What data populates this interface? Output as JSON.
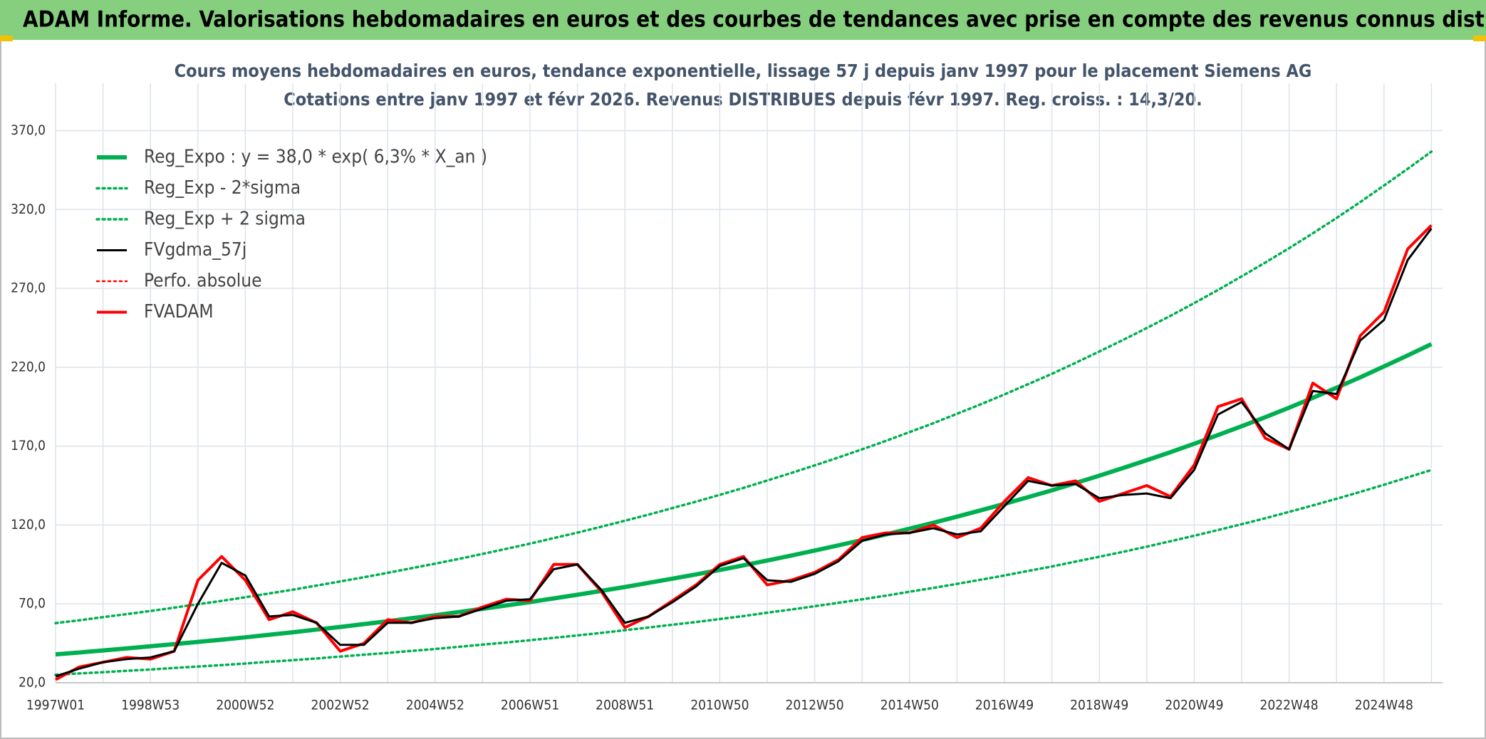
{
  "header": {
    "title": "ADAM Informe. Valorisations hebdomadaires en euros et des courbes de tendances avec prise en compte des revenus connus distribués"
  },
  "chart_data": {
    "type": "line",
    "title": "Cours moyens hebdomadaires en euros, tendance exponentielle, lissage 57 j depuis janv 1997 pour le placement Siemens AG",
    "subtitle": "Cotations entre janv 1997 et févr 2026. Revenus DISTRIBUES depuis févr 1997. Reg. croiss. : 14,3/20.",
    "categories": [
      "1997W01",
      null,
      null,
      null,
      "1998W53",
      null,
      null,
      null,
      "2000W52",
      null,
      null,
      null,
      "2002W52",
      null,
      null,
      null,
      "2004W52",
      null,
      null,
      null,
      "2006W51",
      null,
      null,
      null,
      "2008W51",
      null,
      null,
      null,
      "2010W50",
      null,
      null,
      null,
      "2012W50",
      null,
      null,
      null,
      "2014W50",
      null,
      null,
      null,
      "2016W49",
      null,
      null,
      null,
      "2018W49",
      null,
      null,
      null,
      "2020W49",
      null,
      null,
      null,
      "2022W48",
      null,
      null,
      null,
      "2024W48",
      null,
      null
    ],
    "ylim": [
      20,
      400
    ],
    "yticks": [
      {
        "value": 20,
        "label": "20,0"
      },
      {
        "value": 70,
        "label": "70,0"
      },
      {
        "value": 120,
        "label": "120,0"
      },
      {
        "value": 170,
        "label": "170,0"
      },
      {
        "value": 220,
        "label": "220,0"
      },
      {
        "value": 270,
        "label": "270,0"
      },
      {
        "value": 320,
        "label": "320,0"
      },
      {
        "value": 370,
        "label": "370,0"
      }
    ],
    "grid": true,
    "legend": "top-left",
    "series": [
      {
        "name": "Reg_Expo : y = 38,0 * exp( 6,3% *  X_an )",
        "color": "#00b050",
        "style": "solid",
        "width": 6,
        "values": [
          38.0,
          39.2,
          40.5,
          41.8,
          43.1,
          44.5,
          45.9,
          47.3,
          48.8,
          50.4,
          52.0,
          53.7,
          55.4,
          57.2,
          59.0,
          60.9,
          62.8,
          64.8,
          66.9,
          69.0,
          71.2,
          73.5,
          75.8,
          78.2,
          80.7,
          83.3,
          86.0,
          88.7,
          91.5,
          94.4,
          97.5,
          100.6,
          103.8,
          107.1,
          110.5,
          114.0,
          117.7,
          121.4,
          125.3,
          129.3,
          133.4,
          137.7,
          142.0,
          146.6,
          151.3,
          156.1,
          161.1,
          166.2,
          171.5,
          177.0,
          182.6,
          188.4,
          194.4,
          200.6,
          207.0,
          213.6,
          220.5,
          227.5,
          234.7
        ]
      },
      {
        "name": "Reg_Exp - 2*sigma",
        "color": "#00b050",
        "style": "dotted",
        "width": 3.5,
        "values": [
          25.1,
          25.9,
          26.7,
          27.6,
          28.4,
          29.4,
          30.3,
          31.2,
          32.2,
          33.3,
          34.3,
          35.4,
          36.6,
          37.8,
          38.9,
          40.2,
          41.4,
          42.8,
          44.2,
          45.5,
          47.0,
          48.5,
          50.0,
          51.6,
          53.3,
          55.0,
          56.8,
          58.5,
          60.4,
          62.3,
          64.4,
          66.4,
          68.5,
          70.7,
          72.9,
          75.2,
          77.7,
          80.1,
          82.7,
          85.3,
          88.0,
          90.9,
          93.7,
          96.8,
          99.9,
          103.0,
          106.3,
          109.7,
          113.2,
          116.8,
          120.5,
          124.3,
          128.3,
          132.4,
          136.6,
          141.0,
          145.5,
          150.2,
          154.9
        ]
      },
      {
        "name": "Reg_Exp + 2 sigma",
        "color": "#00b050",
        "style": "dotted",
        "width": 3.5,
        "values": [
          57.8,
          59.6,
          61.6,
          63.5,
          65.5,
          67.6,
          69.8,
          71.9,
          74.2,
          76.6,
          79.0,
          81.6,
          84.2,
          86.9,
          89.7,
          92.6,
          95.5,
          98.5,
          101.7,
          104.9,
          108.2,
          111.7,
          115.2,
          118.9,
          122.7,
          126.6,
          130.7,
          134.8,
          139.1,
          143.5,
          148.2,
          152.9,
          157.8,
          162.8,
          168.0,
          173.3,
          178.9,
          184.5,
          190.5,
          196.5,
          202.8,
          209.3,
          215.8,
          222.8,
          230.0,
          237.3,
          244.9,
          252.6,
          260.7,
          269.0,
          277.6,
          286.4,
          295.5,
          304.9,
          314.6,
          324.7,
          335.2,
          345.8,
          356.7
        ]
      },
      {
        "name": "FVgdma_57j",
        "color": "#000000",
        "style": "solid",
        "width": 3,
        "values": [
          24,
          29,
          33,
          35,
          36,
          40,
          70,
          96,
          88,
          62,
          63,
          58,
          44,
          44,
          58,
          58,
          61,
          62,
          67,
          72,
          73,
          92,
          95,
          79,
          58,
          62,
          71,
          81,
          94,
          99,
          85,
          84,
          89,
          97,
          110,
          114,
          115,
          118,
          114,
          116,
          132,
          148,
          145,
          146,
          137,
          139,
          140,
          137,
          155,
          190,
          198,
          178,
          168,
          205,
          203,
          237,
          250,
          288,
          308
        ]
      },
      {
        "name": "Perfo. absolue",
        "color": "#ff0000",
        "style": "dotted",
        "width": 2.5
      },
      {
        "name": "FVADAM",
        "color": "#ff0000",
        "style": "solid",
        "width": 4,
        "values": [
          22,
          30,
          33,
          36,
          35,
          40,
          85,
          100,
          85,
          60,
          65,
          58,
          40,
          45,
          60,
          58,
          62,
          62,
          68,
          73,
          72,
          95,
          95,
          78,
          55,
          62,
          72,
          82,
          95,
          100,
          82,
          85,
          90,
          98,
          112,
          115,
          115,
          120,
          112,
          118,
          135,
          150,
          145,
          148,
          135,
          140,
          145,
          138,
          158,
          195,
          200,
          175,
          168,
          210,
          200,
          240,
          255,
          295,
          310
        ]
      }
    ]
  }
}
